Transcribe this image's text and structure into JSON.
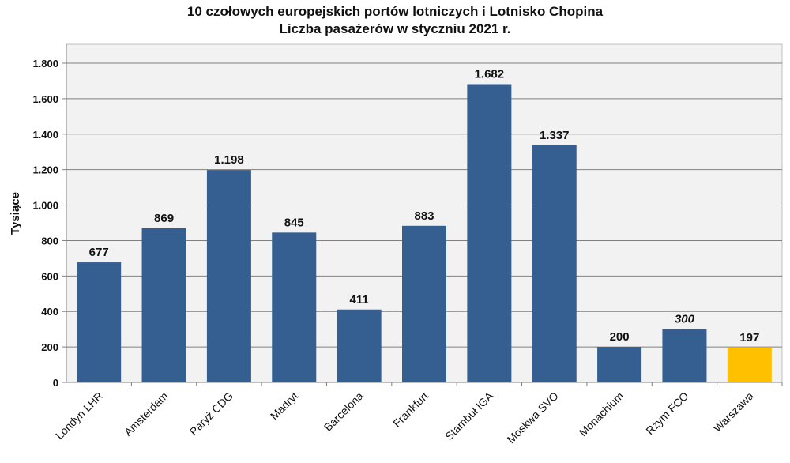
{
  "chart_data": {
    "type": "bar",
    "title": "10 czołowych europejskich portów lotniczych i Lotnisko Chopina",
    "subtitle": "Liczba pasażerów w styczniu 2021 r.",
    "xlabel": "",
    "ylabel": "Tysiące",
    "ylim": [
      0,
      1800
    ],
    "yticks": [
      0,
      200,
      400,
      600,
      800,
      1000,
      1200,
      1400,
      1600,
      1800
    ],
    "ytick_labels": [
      "0",
      "200",
      "400",
      "600",
      "800",
      "1.000",
      "1.200",
      "1.400",
      "1.600",
      "1.800"
    ],
    "grid": true,
    "categories": [
      "Londyn LHR",
      "Amsterdam",
      "Paryż CDG",
      "Madryt",
      "Barcelona",
      "Frankfurt",
      "Stambuł IGA",
      "Moskwa SVO",
      "Monachium",
      "Rzym FCO",
      "Warszawa"
    ],
    "values": [
      677,
      869,
      1198,
      845,
      411,
      883,
      1682,
      1337,
      200,
      300,
      197
    ],
    "value_labels": [
      "677",
      "869",
      "1.198",
      "845",
      "411",
      "883",
      "1.682",
      "1.337",
      "200",
      "300",
      "197"
    ],
    "italic_labels": [
      false,
      false,
      false,
      false,
      false,
      false,
      false,
      false,
      false,
      true,
      false
    ],
    "bar_colors": [
      "#365f91",
      "#365f91",
      "#365f91",
      "#365f91",
      "#365f91",
      "#365f91",
      "#365f91",
      "#365f91",
      "#365f91",
      "#365f91",
      "#ffc000"
    ],
    "colors": {
      "bar": "#365f91",
      "highlight": "#ffc000",
      "plot_bg": "#f2f2f2",
      "grid": "#808080"
    }
  }
}
